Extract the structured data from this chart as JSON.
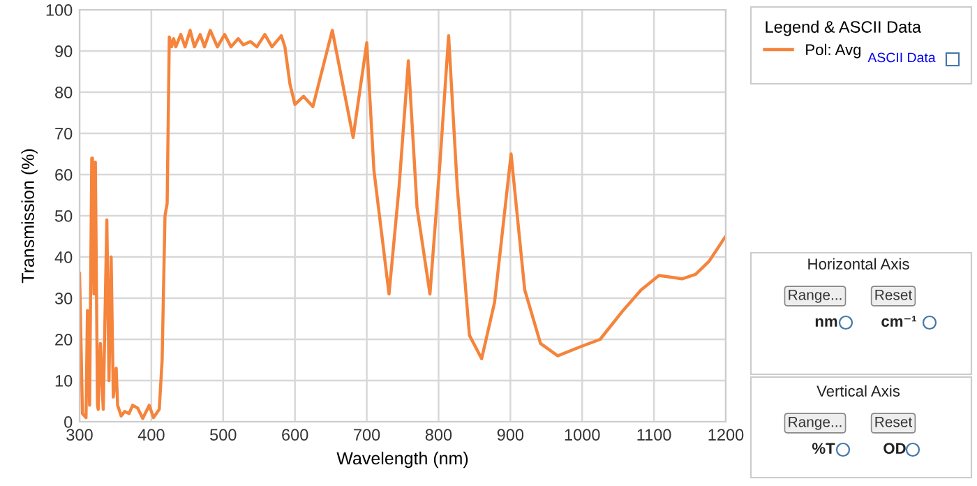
{
  "chart_data": {
    "type": "line",
    "xlabel": "Wavelength (nm)",
    "ylabel": "Transmission (%)",
    "legend_title": "Legend & ASCII Data",
    "legend": "right",
    "grid": true,
    "xlim": [
      300,
      1200
    ],
    "xticks": [
      300,
      400,
      500,
      600,
      700,
      800,
      900,
      1000,
      1100,
      1200
    ],
    "ylim": [
      0,
      100
    ],
    "yticks": [
      0,
      10,
      20,
      30,
      40,
      50,
      60,
      70,
      80,
      90,
      100
    ],
    "series": [
      {
        "name": "Pol: Avg",
        "color": "#f5843c",
        "x": [
          300,
          304,
          309,
          311,
          314,
          317,
          318,
          320,
          322,
          325,
          326,
          329,
          333,
          338,
          341,
          344,
          347,
          351,
          353,
          358,
          363,
          369,
          374,
          381,
          388,
          397,
          403,
          411,
          415,
          419,
          422,
          425,
          428,
          431,
          434,
          441,
          447,
          454,
          460,
          468,
          474,
          482,
          492,
          502,
          511,
          521,
          528,
          538,
          547,
          558,
          568,
          581,
          586,
          593,
          600,
          612,
          625,
          633,
          652,
          681,
          700,
          710,
          731,
          745,
          758,
          770,
          788,
          802,
          814,
          826,
          843,
          860,
          878,
          901,
          920,
          942,
          966,
          999,
          1025,
          1056,
          1082,
          1107,
          1139,
          1158,
          1177,
          1197,
          1200
        ],
        "values": [
          36,
          2,
          1,
          27,
          4,
          64,
          64,
          31,
          63,
          4,
          3,
          19,
          3,
          49,
          10,
          40,
          6,
          13,
          4,
          1.4,
          2.5,
          2,
          4,
          3.3,
          0.8,
          4,
          1,
          3,
          15,
          50,
          53,
          93.4,
          91,
          93,
          91,
          94,
          91,
          95,
          91,
          94,
          91,
          95,
          91,
          94,
          91,
          93,
          91.5,
          92.3,
          91,
          94,
          91,
          93.7,
          91,
          82,
          77,
          79,
          76.5,
          82,
          95,
          69,
          92,
          61,
          31,
          57,
          87.6,
          52,
          31,
          63,
          93.7,
          57,
          21,
          15.3,
          29,
          65,
          32,
          19,
          16,
          18.3,
          20,
          26.8,
          32,
          35.5,
          34.7,
          35.8,
          39,
          44.3,
          45
        ]
      }
    ],
    "annotations": [
      "ASCII Data",
      "Horizontal Axis",
      "Range...",
      "Reset",
      "nm",
      "cm⁻¹",
      "Vertical Axis",
      "Range...",
      "Reset",
      "%T",
      "OD"
    ]
  }
}
